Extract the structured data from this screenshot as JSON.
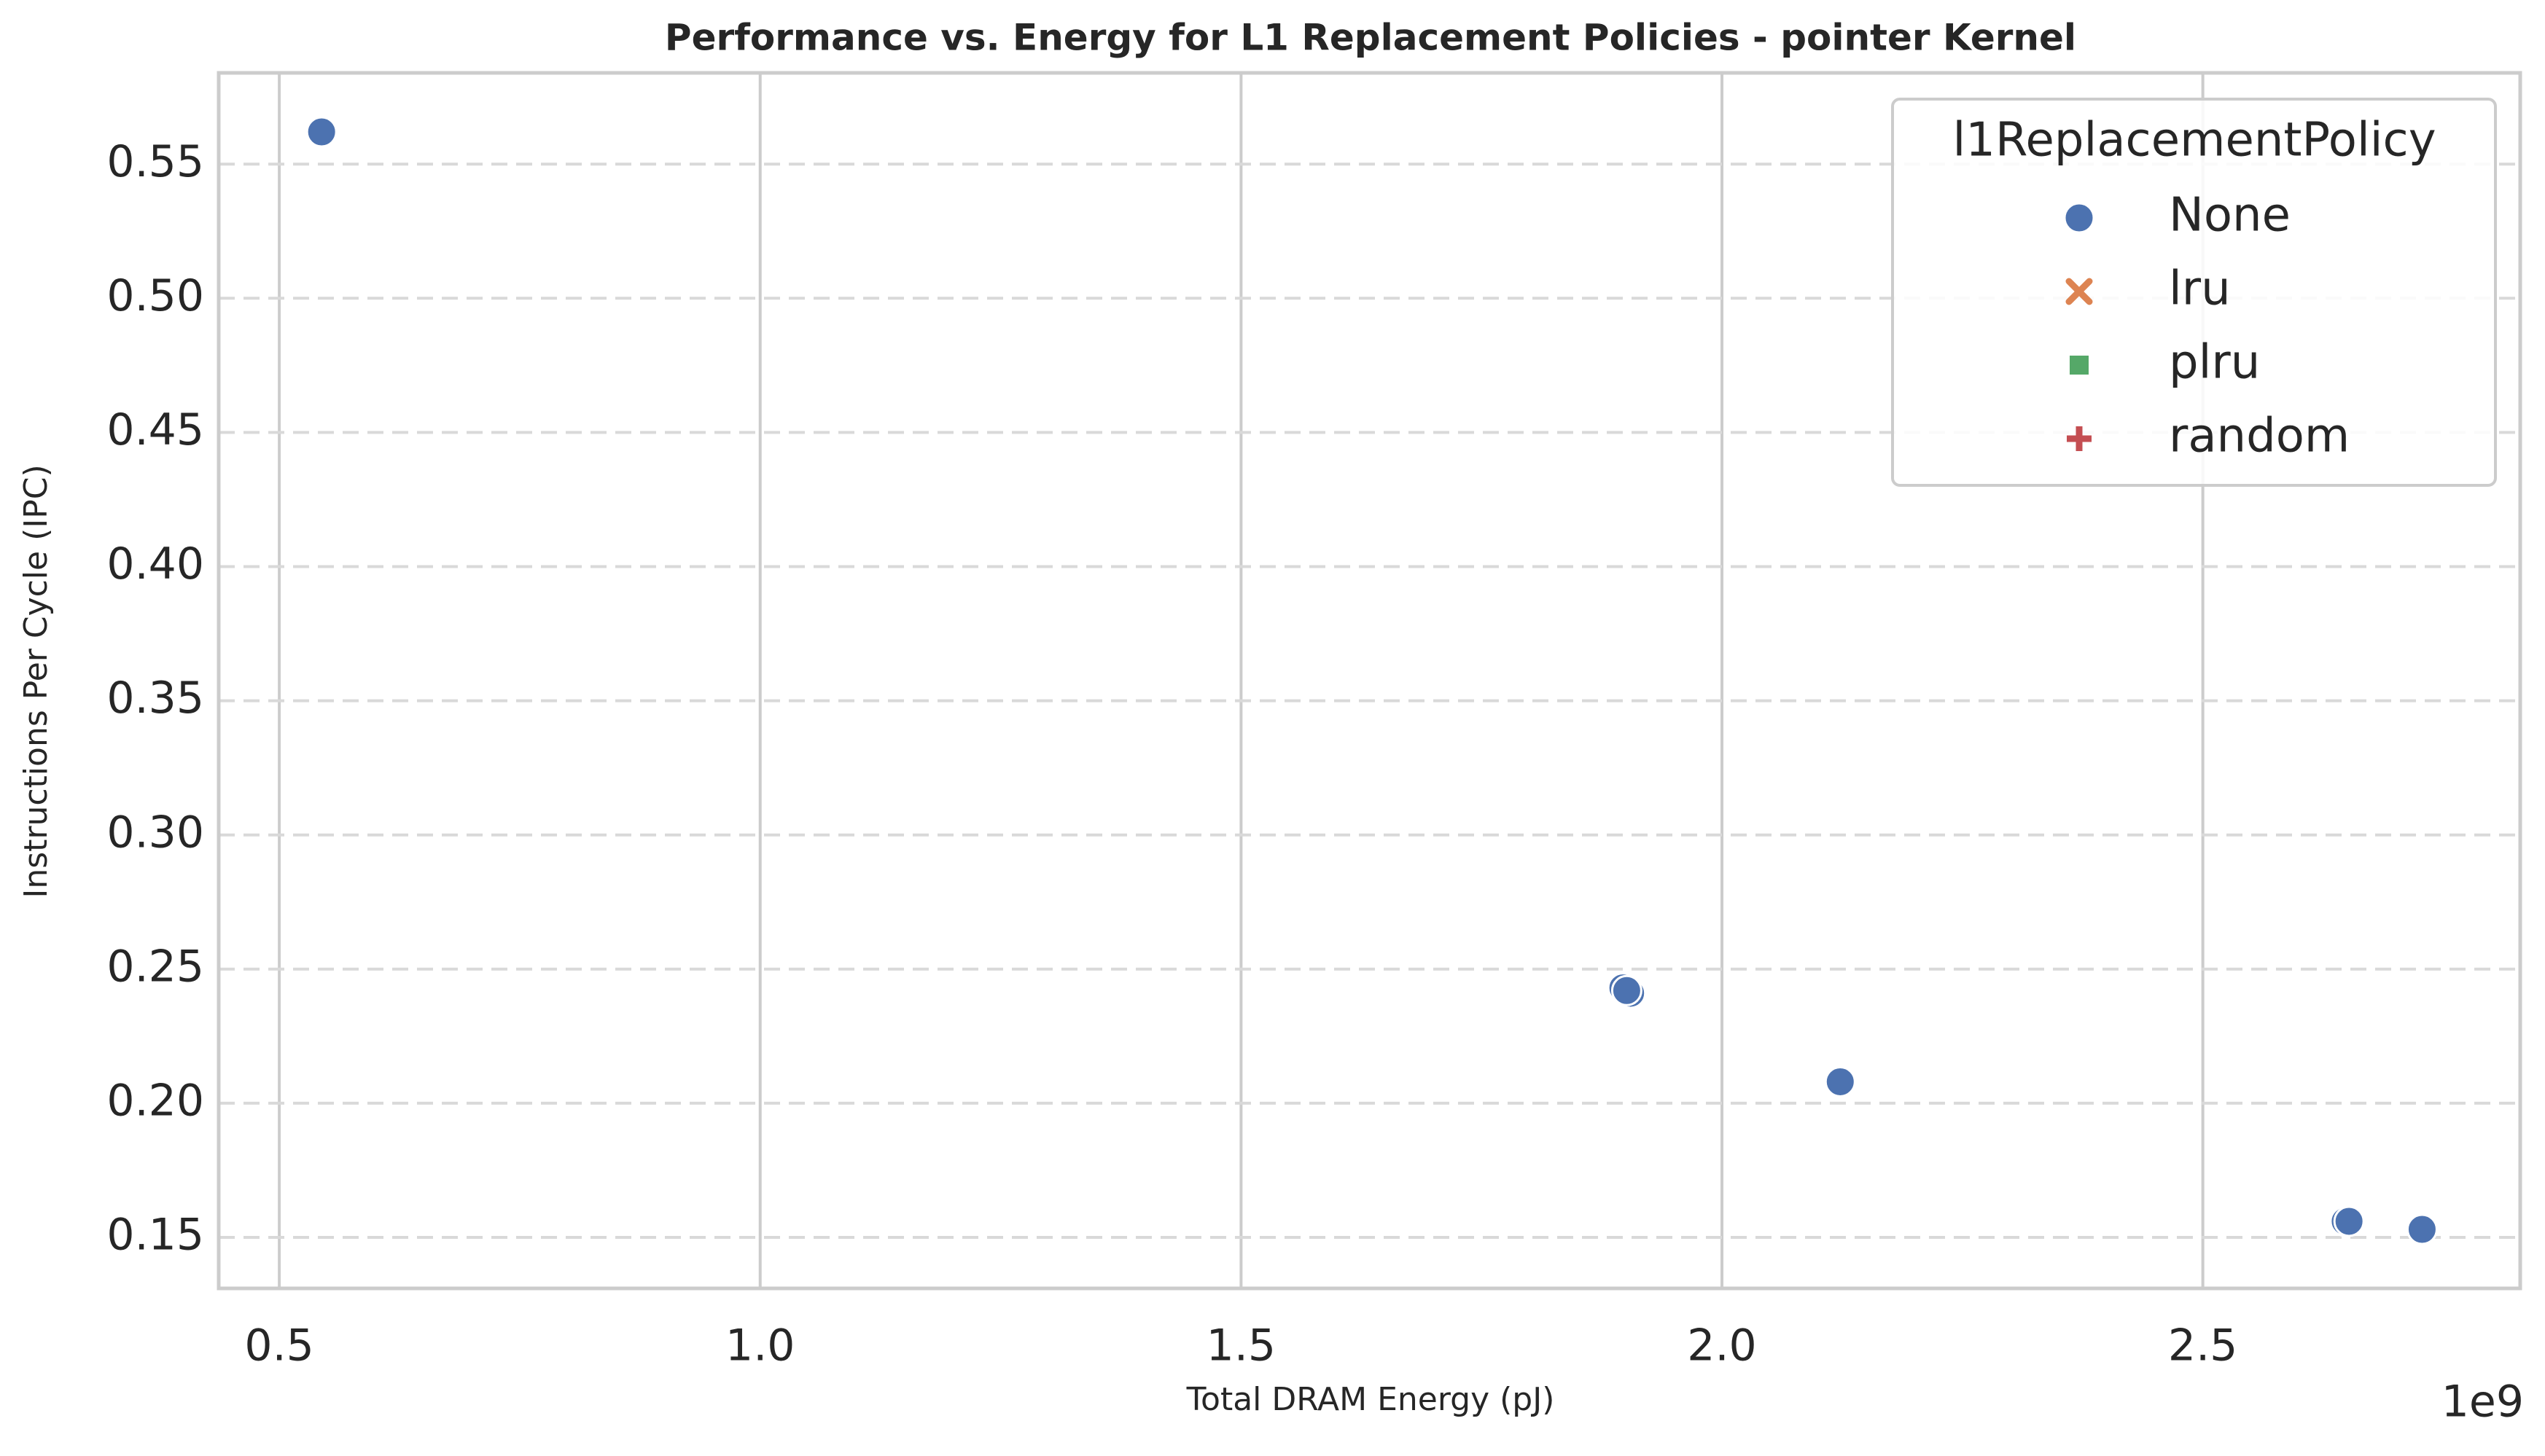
{
  "chart_data": {
    "type": "scatter",
    "title": "Performance vs. Energy for L1 Replacement Policies - pointer Kernel",
    "xlabel": "Total DRAM Energy (pJ)",
    "ylabel": "Instructions Per Cycle (IPC)",
    "x_offset_text": "1e9",
    "x_scale": 1000000000,
    "xlim": [
      0.437,
      2.83
    ],
    "ylim": [
      0.131,
      0.584
    ],
    "x_ticks": [
      0.5,
      1.0,
      1.5,
      2.0,
      2.5
    ],
    "x_tick_labels": [
      "0.5",
      "1.0",
      "1.5",
      "2.0",
      "2.5"
    ],
    "y_ticks": [
      0.15,
      0.2,
      0.25,
      0.3,
      0.35,
      0.4,
      0.45,
      0.5,
      0.55
    ],
    "y_tick_labels": [
      "0.15",
      "0.20",
      "0.25",
      "0.30",
      "0.35",
      "0.40",
      "0.45",
      "0.50",
      "0.55"
    ],
    "grid": true,
    "legend": {
      "title": "l1ReplacementPolicy",
      "position": "top-right",
      "entries": [
        {
          "name": "None",
          "color": "#4c72b0",
          "marker": "circle"
        },
        {
          "name": "lru",
          "color": "#dd8452",
          "marker": "x"
        },
        {
          "name": "plru",
          "color": "#55a868",
          "marker": "square"
        },
        {
          "name": "random",
          "color": "#c44e52",
          "marker": "plus"
        }
      ]
    },
    "series": [
      {
        "name": "None",
        "color": "#4c72b0",
        "marker": "circle",
        "points": [
          {
            "x": 0.544,
            "y": 0.562
          },
          {
            "x": 1.897,
            "y": 0.243
          },
          {
            "x": 1.905,
            "y": 0.241
          },
          {
            "x": 1.901,
            "y": 0.242
          },
          {
            "x": 2.123,
            "y": 0.208
          },
          {
            "x": 2.648,
            "y": 0.156
          },
          {
            "x": 2.652,
            "y": 0.156
          },
          {
            "x": 2.728,
            "y": 0.153
          }
        ]
      }
    ]
  }
}
